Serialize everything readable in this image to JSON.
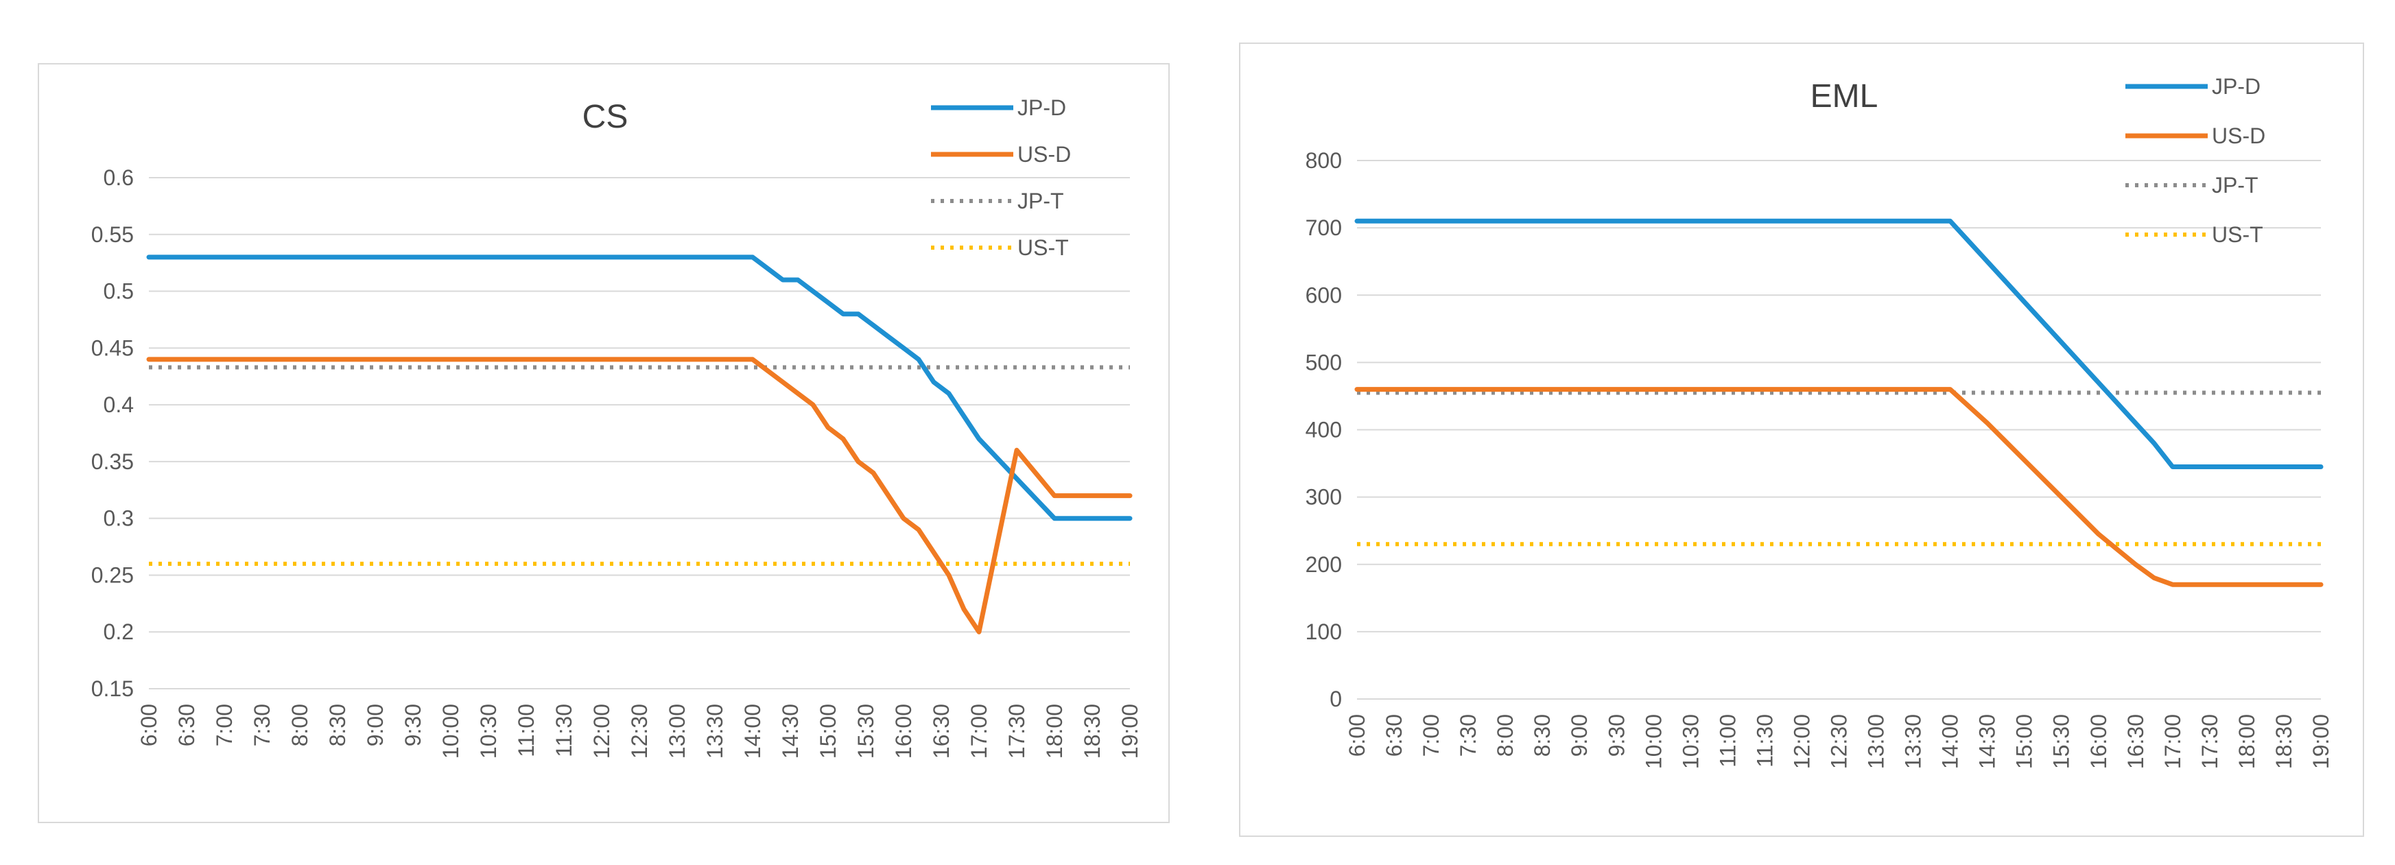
{
  "chart_data": [
    {
      "type": "line",
      "title": "CS",
      "xlabel": "",
      "ylabel": "",
      "ylim": [
        0.15,
        0.6
      ],
      "yticks": [
        "0.15",
        "0.2",
        "0.25",
        "0.3",
        "0.35",
        "0.4",
        "0.45",
        "0.5",
        "0.55",
        "0.6"
      ],
      "categories": [
        "6:00",
        "6:30",
        "7:00",
        "7:30",
        "8:00",
        "8:30",
        "9:00",
        "9:30",
        "10:00",
        "10:30",
        "11:00",
        "11:30",
        "12:00",
        "12:30",
        "13:00",
        "13:30",
        "14:00",
        "14:30",
        "15:00",
        "15:30",
        "16:00",
        "16:30",
        "17:00",
        "17:30",
        "18:00",
        "18:30",
        "19:00"
      ],
      "series": [
        {
          "name": "JP-D",
          "style": "solid",
          "color": "#1e90d2",
          "x": [
            0,
            16,
            16.4,
            16.8,
            17.2,
            17.6,
            18,
            18.4,
            18.8,
            19.2,
            19.6,
            20,
            20.4,
            20.8,
            21.2,
            21.6,
            22,
            24,
            26
          ],
          "values": [
            0.53,
            0.53,
            0.52,
            0.51,
            0.51,
            0.5,
            0.49,
            0.48,
            0.48,
            0.47,
            0.46,
            0.45,
            0.44,
            0.42,
            0.41,
            0.39,
            0.37,
            0.3,
            0.3
          ]
        },
        {
          "name": "US-D",
          "style": "solid",
          "color": "#f07a22",
          "x": [
            0,
            16,
            16.4,
            16.8,
            17.2,
            17.6,
            18,
            18.4,
            18.8,
            19.2,
            19.6,
            20,
            20.4,
            20.8,
            21.2,
            21.6,
            22,
            23,
            24,
            26
          ],
          "values": [
            0.44,
            0.44,
            0.43,
            0.42,
            0.41,
            0.4,
            0.38,
            0.37,
            0.35,
            0.34,
            0.32,
            0.3,
            0.29,
            0.27,
            0.25,
            0.22,
            0.2,
            0.36,
            0.32,
            0.32
          ]
        },
        {
          "name": "JP-T",
          "style": "dotted",
          "color": "#8c8c8c",
          "x": [
            0,
            26
          ],
          "values": [
            0.433,
            0.433
          ]
        },
        {
          "name": "US-T",
          "style": "dotted",
          "color": "#ffc000",
          "x": [
            0,
            26
          ],
          "values": [
            0.26,
            0.26
          ]
        }
      ]
    },
    {
      "type": "line",
      "title": "EML",
      "xlabel": "",
      "ylabel": "",
      "ylim": [
        0,
        800
      ],
      "yticks": [
        "0",
        "100",
        "200",
        "300",
        "400",
        "500",
        "600",
        "700",
        "800"
      ],
      "categories": [
        "6:00",
        "6:30",
        "7:00",
        "7:30",
        "8:00",
        "8:30",
        "9:00",
        "9:30",
        "10:00",
        "10:30",
        "11:00",
        "11:30",
        "12:00",
        "12:30",
        "13:00",
        "13:30",
        "14:00",
        "14:30",
        "15:00",
        "15:30",
        "16:00",
        "16:30",
        "17:00",
        "17:30",
        "18:00",
        "18:30",
        "19:00"
      ],
      "series": [
        {
          "name": "JP-D",
          "style": "solid",
          "color": "#1e90d2",
          "x": [
            0,
            16,
            17,
            18,
            19,
            20,
            21,
            21.5,
            22,
            26
          ],
          "values": [
            710,
            710,
            650,
            590,
            530,
            470,
            410,
            380,
            345,
            345
          ]
        },
        {
          "name": "US-D",
          "style": "solid",
          "color": "#f07a22",
          "x": [
            0,
            16,
            17,
            18,
            19,
            20,
            21,
            21.5,
            22,
            26
          ],
          "values": [
            460,
            460,
            410,
            355,
            300,
            245,
            200,
            180,
            170,
            170
          ]
        },
        {
          "name": "JP-T",
          "style": "dotted",
          "color": "#8c8c8c",
          "x": [
            0,
            26
          ],
          "values": [
            455,
            455
          ]
        },
        {
          "name": "US-T",
          "style": "dotted",
          "color": "#ffc000",
          "x": [
            0,
            26
          ],
          "values": [
            230,
            230
          ]
        }
      ]
    }
  ]
}
